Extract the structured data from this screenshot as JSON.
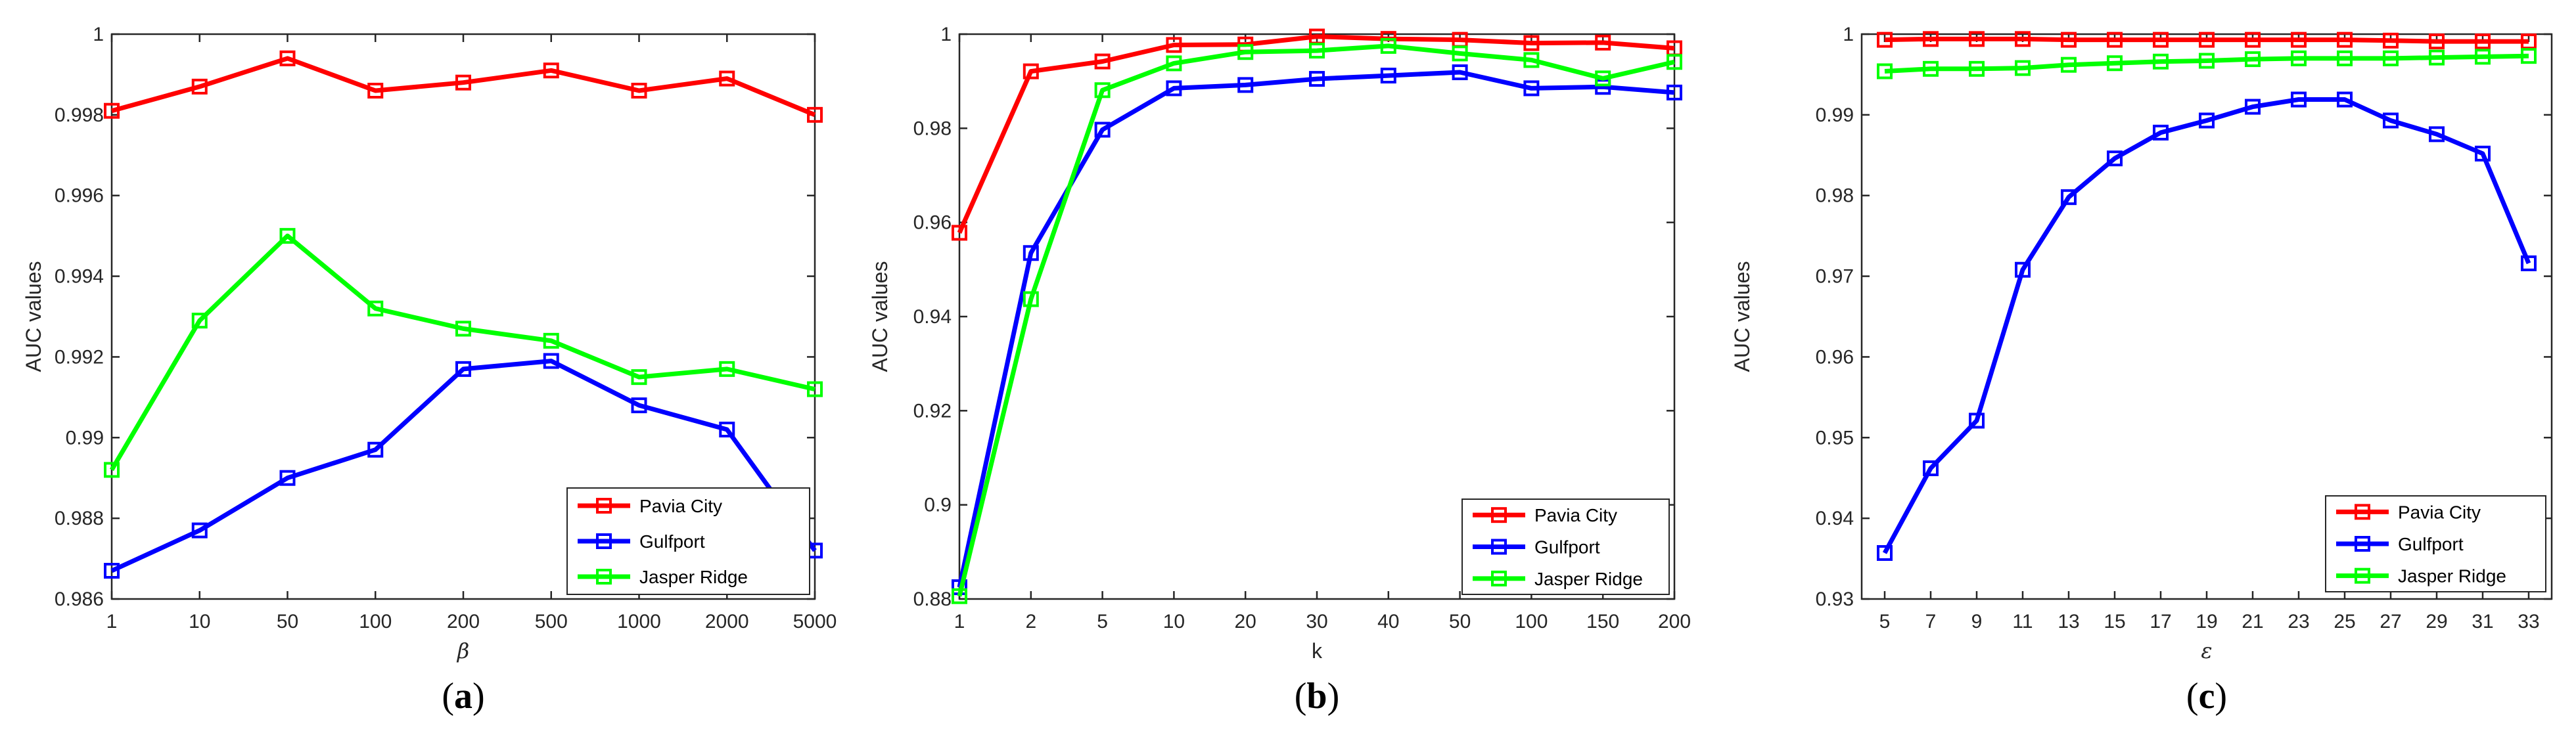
{
  "chart_data": [
    {
      "type": "line",
      "panel_label": "(a)",
      "panel_letter": "a",
      "xlabel": "β",
      "ylabel": "AUC values",
      "categories": [
        "1",
        "10",
        "50",
        "100",
        "200",
        "500",
        "1000",
        "2000",
        "5000"
      ],
      "ylim": [
        0.986,
        1.0
      ],
      "yticks": [
        0.986,
        0.988,
        0.99,
        0.992,
        0.994,
        0.996,
        0.998,
        1
      ],
      "ytick_labels": [
        "0.986",
        "0.988",
        "0.99",
        "0.992",
        "0.994",
        "0.996",
        "0.998",
        "1"
      ],
      "legend": "bottom-right",
      "series": [
        {
          "name": "Pavia City",
          "color": "#ff0000",
          "values": [
            0.9981,
            0.9987,
            0.9994,
            0.9986,
            0.9988,
            0.9991,
            0.9986,
            0.9989,
            0.998
          ]
        },
        {
          "name": "Gulfport",
          "color": "#0000ff",
          "values": [
            0.9867,
            0.9877,
            0.989,
            0.9897,
            0.9917,
            0.9919,
            0.9908,
            0.9902,
            0.9872
          ]
        },
        {
          "name": "Jasper Ridge",
          "color": "#00ff00",
          "values": [
            0.9892,
            0.9929,
            0.995,
            0.9932,
            0.9927,
            0.9924,
            0.9915,
            0.9917,
            0.9912
          ]
        }
      ]
    },
    {
      "type": "line",
      "panel_label": "(b)",
      "panel_letter": "b",
      "xlabel": "k",
      "ylabel": "AUC values",
      "categories": [
        "1",
        "2",
        "5",
        "10",
        "20",
        "30",
        "40",
        "50",
        "100",
        "150",
        "200"
      ],
      "ylim": [
        0.88,
        1.0
      ],
      "yticks": [
        0.88,
        0.9,
        0.92,
        0.94,
        0.96,
        0.98,
        1
      ],
      "ytick_labels": [
        "0.88",
        "0.9",
        "0.92",
        "0.94",
        "0.96",
        "0.98",
        "1"
      ],
      "legend": "bottom-right",
      "series": [
        {
          "name": "Pavia City",
          "color": "#ff0000",
          "values": [
            0.9578,
            0.9921,
            0.9942,
            0.9977,
            0.9978,
            0.9995,
            0.999,
            0.9988,
            0.9981,
            0.9982,
            0.997
          ]
        },
        {
          "name": "Gulfport",
          "color": "#0000ff",
          "values": [
            0.8825,
            0.9535,
            0.9797,
            0.9885,
            0.9892,
            0.9905,
            0.9912,
            0.9919,
            0.9885,
            0.9888,
            0.9876
          ]
        },
        {
          "name": "Jasper Ridge",
          "color": "#00ff00",
          "values": [
            0.8806,
            0.9437,
            0.9881,
            0.9938,
            0.9962,
            0.9965,
            0.9975,
            0.9959,
            0.9945,
            0.9906,
            0.9941
          ]
        }
      ]
    },
    {
      "type": "line",
      "panel_label": "(c)",
      "panel_letter": "c",
      "xlabel": "ε",
      "ylabel": "AUC values",
      "categories": [
        "5",
        "7",
        "9",
        "11",
        "13",
        "15",
        "17",
        "19",
        "21",
        "23",
        "25",
        "27",
        "29",
        "31",
        "33"
      ],
      "ylim": [
        0.93,
        1.0
      ],
      "yticks": [
        0.93,
        0.94,
        0.95,
        0.96,
        0.97,
        0.98,
        0.99,
        1
      ],
      "ytick_labels": [
        "0.93",
        "0.94",
        "0.95",
        "0.96",
        "0.97",
        "0.98",
        "0.99",
        "1"
      ],
      "legend": "bottom-right",
      "series": [
        {
          "name": "Pavia City",
          "color": "#ff0000",
          "values": [
            0.9993,
            0.9994,
            0.9994,
            0.9994,
            0.9993,
            0.9993,
            0.9993,
            0.9993,
            0.9993,
            0.9993,
            0.9993,
            0.9992,
            0.9991,
            0.9991,
            0.9991
          ]
        },
        {
          "name": "Gulfport",
          "color": "#0000ff",
          "values": [
            0.9357,
            0.9462,
            0.9521,
            0.9708,
            0.9798,
            0.9846,
            0.9878,
            0.9893,
            0.991,
            0.9919,
            0.9919,
            0.9893,
            0.9876,
            0.9852,
            0.9716
          ]
        },
        {
          "name": "Jasper Ridge",
          "color": "#00ff00",
          "values": [
            0.9954,
            0.9957,
            0.9957,
            0.9958,
            0.9962,
            0.9964,
            0.9966,
            0.9967,
            0.9969,
            0.997,
            0.997,
            0.997,
            0.9971,
            0.9972,
            0.9973
          ]
        }
      ]
    }
  ]
}
